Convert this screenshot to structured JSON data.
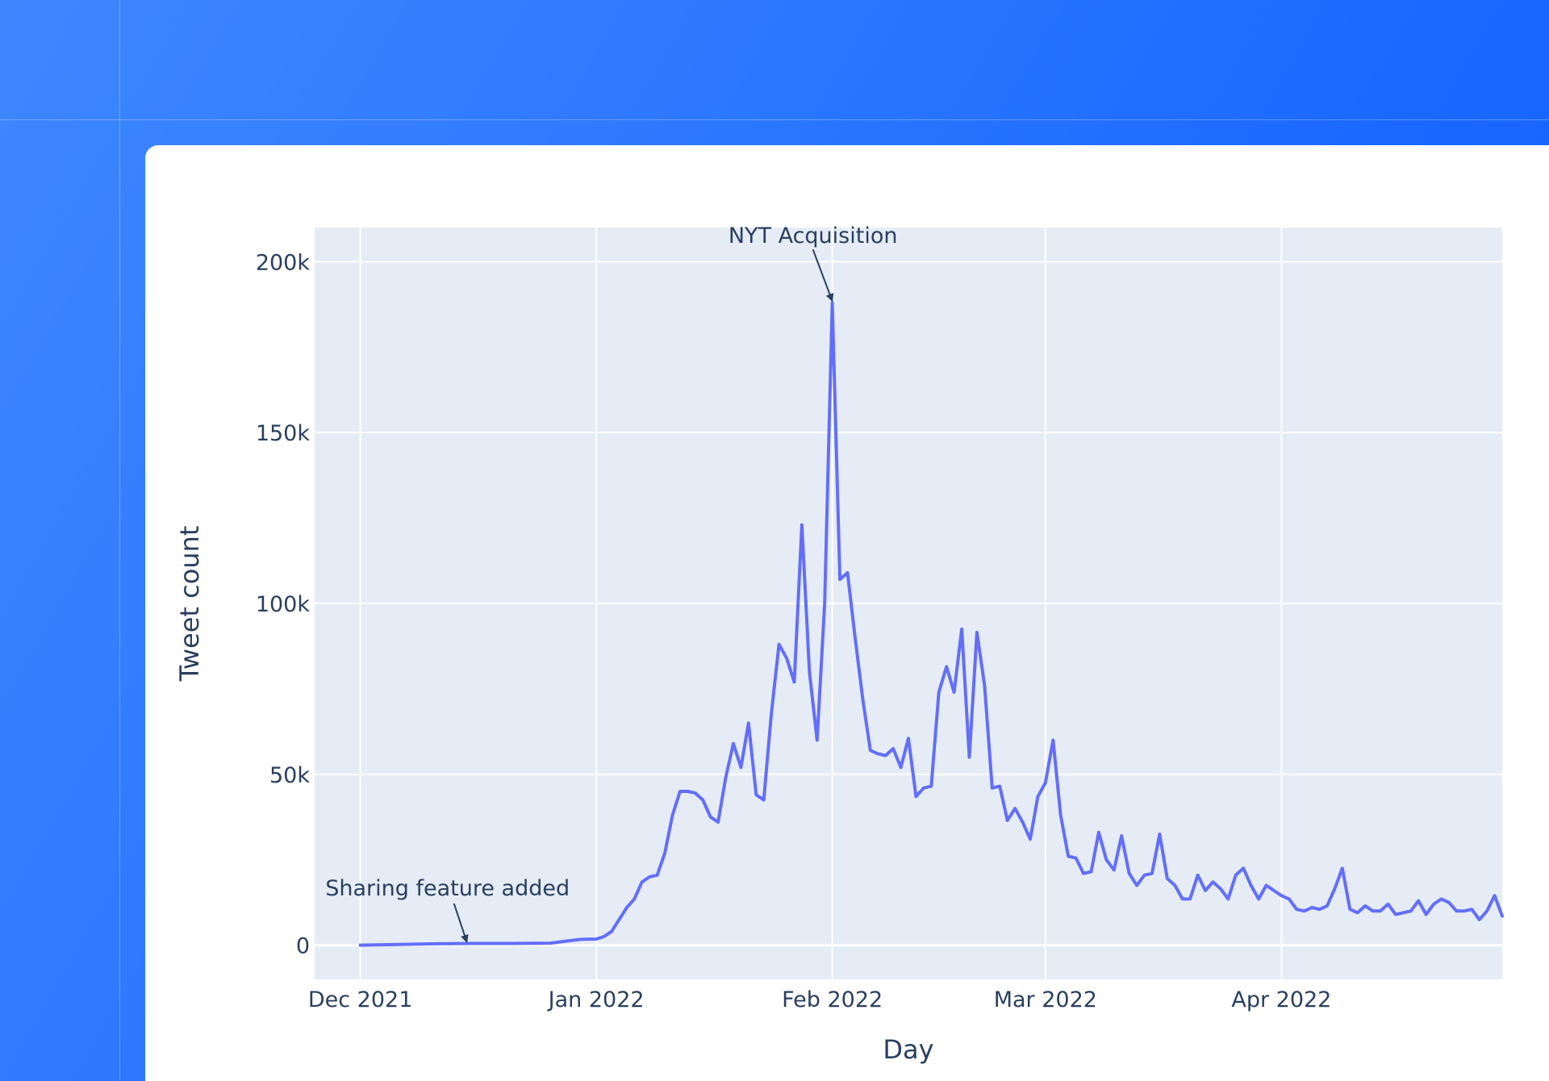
{
  "chart_data": {
    "type": "line",
    "xlabel": "Day",
    "ylabel": "Tweet count",
    "x_range": [
      "2021-11-25",
      "2022-04-30"
    ],
    "y_range": [
      -10000,
      210000
    ],
    "y_ticks": [
      0,
      50000,
      100000,
      150000,
      200000
    ],
    "y_tick_labels": [
      "0",
      "50k",
      "100k",
      "150k",
      "200k"
    ],
    "x_ticks": [
      "2021-12-01",
      "2022-01-01",
      "2022-02-01",
      "2022-03-01",
      "2022-04-01"
    ],
    "x_tick_labels": [
      "Dec 2021",
      "Jan 2022",
      "Feb 2022",
      "Mar 2022",
      "Apr 2022"
    ],
    "grid": true,
    "colors": {
      "line": "#636efa",
      "plot_bg": "#e5ecf6",
      "grid": "#ffffff",
      "text": "#2a3f5f"
    },
    "annotations": [
      {
        "text": "NYT Acquisition",
        "x": "2022-02-01",
        "y": 188000
      },
      {
        "text": "Sharing feature added",
        "x": "2021-12-15",
        "y": 400
      }
    ],
    "series": [
      {
        "x": [
          "2021-12-01",
          "2021-12-06",
          "2021-12-11",
          "2021-12-16",
          "2021-12-21",
          "2021-12-26",
          "2021-12-28",
          "2021-12-30",
          "2022-01-01",
          "2022-01-02",
          "2022-01-03",
          "2022-01-04",
          "2022-01-05",
          "2022-01-06",
          "2022-01-07",
          "2022-01-08",
          "2022-01-09",
          "2022-01-10",
          "2022-01-11",
          "2022-01-12",
          "2022-01-13",
          "2022-01-14",
          "2022-01-15",
          "2022-01-16",
          "2022-01-17",
          "2022-01-18",
          "2022-01-19",
          "2022-01-20",
          "2022-01-21",
          "2022-01-22",
          "2022-01-23",
          "2022-01-24",
          "2022-01-25",
          "2022-01-26",
          "2022-01-27",
          "2022-01-28",
          "2022-01-29",
          "2022-01-30",
          "2022-01-31",
          "2022-02-01",
          "2022-02-02",
          "2022-02-03",
          "2022-02-04",
          "2022-02-05",
          "2022-02-06",
          "2022-02-07",
          "2022-02-08",
          "2022-02-09",
          "2022-02-10",
          "2022-02-11",
          "2022-02-12",
          "2022-02-13",
          "2022-02-14",
          "2022-02-15",
          "2022-02-16",
          "2022-02-17",
          "2022-02-18",
          "2022-02-19",
          "2022-02-20",
          "2022-02-21",
          "2022-02-22",
          "2022-02-23",
          "2022-02-24",
          "2022-02-25",
          "2022-02-26",
          "2022-02-27",
          "2022-02-28",
          "2022-03-01",
          "2022-03-02",
          "2022-03-03",
          "2022-03-04",
          "2022-03-05",
          "2022-03-06",
          "2022-03-07",
          "2022-03-08",
          "2022-03-09",
          "2022-03-10",
          "2022-03-11",
          "2022-03-12",
          "2022-03-13",
          "2022-03-14",
          "2022-03-15",
          "2022-03-16",
          "2022-03-17",
          "2022-03-18",
          "2022-03-19",
          "2022-03-20",
          "2022-03-21",
          "2022-03-22",
          "2022-03-23",
          "2022-03-24",
          "2022-03-25",
          "2022-03-26",
          "2022-03-27",
          "2022-03-28",
          "2022-03-29",
          "2022-03-30",
          "2022-03-31",
          "2022-04-01",
          "2022-04-02",
          "2022-04-03",
          "2022-04-04",
          "2022-04-05",
          "2022-04-06",
          "2022-04-07",
          "2022-04-08",
          "2022-04-09",
          "2022-04-10",
          "2022-04-11",
          "2022-04-12",
          "2022-04-13",
          "2022-04-14",
          "2022-04-15",
          "2022-04-16",
          "2022-04-17",
          "2022-04-18",
          "2022-04-19",
          "2022-04-20",
          "2022-04-21",
          "2022-04-22",
          "2022-04-23",
          "2022-04-24",
          "2022-04-25",
          "2022-04-26",
          "2022-04-27",
          "2022-04-28",
          "2022-04-29",
          "2022-04-30"
        ],
        "y": [
          0,
          200,
          400,
          500,
          500,
          600,
          1200,
          1700,
          1800,
          2500,
          4000,
          7500,
          11000,
          13500,
          18500,
          20000,
          20500,
          27000,
          38000,
          45000,
          45000,
          44500,
          42500,
          37500,
          36000,
          49000,
          59000,
          52000,
          65000,
          44000,
          42500,
          68000,
          88000,
          84000,
          77000,
          123000,
          80000,
          60000,
          100000,
          188000,
          107000,
          109000,
          90000,
          72000,
          57000,
          56000,
          55500,
          57500,
          52000,
          60500,
          43500,
          46000,
          46500,
          74000,
          81500,
          74000,
          92500,
          55000,
          91500,
          76000,
          46000,
          46500,
          36500,
          40000,
          36000,
          31000,
          43500,
          47500,
          60000,
          38000,
          26000,
          25500,
          21000,
          21500,
          33000,
          25000,
          22000,
          32000,
          21000,
          17500,
          20500,
          21000,
          32500,
          19500,
          17500,
          13500,
          13500,
          20500,
          16000,
          18500,
          16500,
          13500,
          20500,
          22500,
          17500,
          13500,
          17500,
          16000,
          14500,
          13500,
          10500,
          10000,
          11000,
          10500,
          11500,
          16500,
          22500,
          10500,
          9500,
          11500,
          10000,
          10000,
          12000,
          9000,
          9500,
          10000,
          13000,
          9000,
          12000,
          13500,
          12500,
          10000,
          10000,
          10500,
          7500,
          10000,
          14500,
          8500
        ]
      }
    ]
  }
}
